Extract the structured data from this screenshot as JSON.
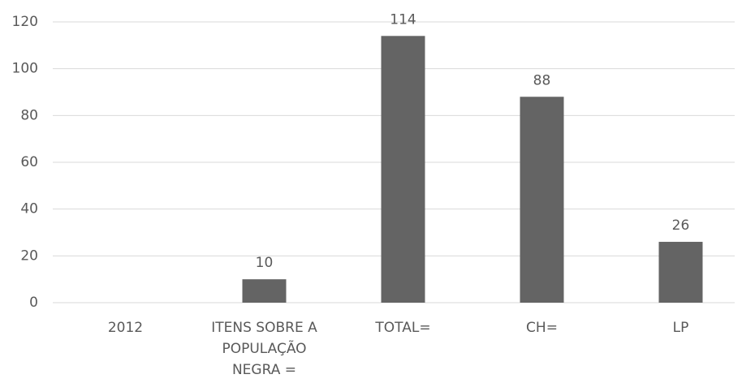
{
  "chart_data": {
    "type": "bar",
    "categories": [
      "2012",
      "ITENS SOBRE A POPULAÇÃO NEGRA =",
      "TOTAL=",
      "CH=",
      "LP"
    ],
    "values": [
      null,
      10,
      114,
      88,
      26
    ],
    "color": "#646464",
    "ylim": [
      0,
      120
    ],
    "yticks": [
      0,
      20,
      40,
      60,
      80,
      100,
      120
    ],
    "grid": true
  }
}
